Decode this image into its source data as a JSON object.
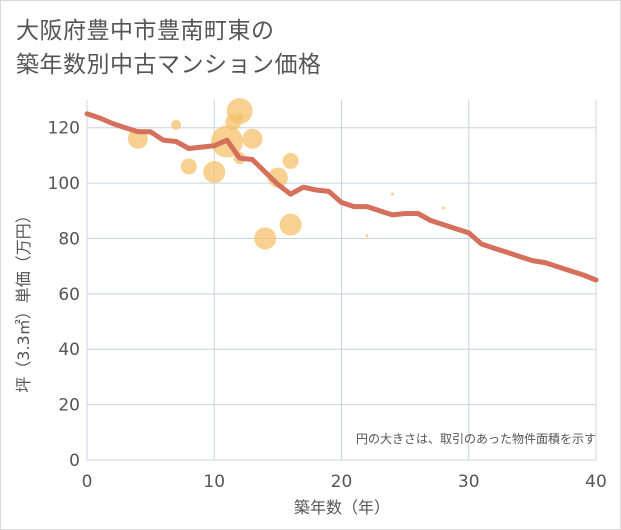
{
  "chart_data": {
    "type": "scatter",
    "title_line1": "大阪府豊中市豊南町東の",
    "title_line2": "築年数別中古マンション価格",
    "xlabel": "築年数（年）",
    "ylabel": "坪（3.3㎡）単価（万円）",
    "xlim": [
      0,
      40
    ],
    "ylim": [
      0,
      130
    ],
    "x_ticks": [
      0,
      10,
      20,
      30,
      40
    ],
    "y_ticks": [
      0,
      20,
      40,
      60,
      80,
      100,
      120
    ],
    "grid": true,
    "note": "円の大きさは、取引のあった物件面積を示す",
    "colors": {
      "bubble": "#f5c26b",
      "line": "#d4705c",
      "grid": "#c8d4e0",
      "text": "#555555"
    },
    "bubbles": [
      {
        "x": 4,
        "y": 116,
        "size": 10
      },
      {
        "x": 7,
        "y": 121,
        "size": 5
      },
      {
        "x": 8,
        "y": 106,
        "size": 8
      },
      {
        "x": 10,
        "y": 104,
        "size": 11
      },
      {
        "x": 11,
        "y": 115,
        "size": 16
      },
      {
        "x": 11.5,
        "y": 122,
        "size": 8
      },
      {
        "x": 12,
        "y": 126,
        "size": 13
      },
      {
        "x": 12,
        "y": 124,
        "size": 4
      },
      {
        "x": 12,
        "y": 109,
        "size": 6
      },
      {
        "x": 13,
        "y": 116,
        "size": 10
      },
      {
        "x": 15,
        "y": 102,
        "size": 10
      },
      {
        "x": 16,
        "y": 108,
        "size": 8
      },
      {
        "x": 14,
        "y": 80,
        "size": 11
      },
      {
        "x": 16,
        "y": 85,
        "size": 11
      },
      {
        "x": 22,
        "y": 81,
        "size": 1.5
      },
      {
        "x": 24,
        "y": 96,
        "size": 1.5
      },
      {
        "x": 28,
        "y": 91,
        "size": 1.5
      }
    ],
    "line": {
      "x": [
        0,
        1,
        2,
        3,
        4,
        5,
        6,
        7,
        8,
        9,
        10,
        11,
        12,
        13,
        14,
        15,
        16,
        17,
        18,
        19,
        20,
        21,
        22,
        23,
        24,
        25,
        26,
        27,
        28,
        29,
        30,
        31,
        32,
        33,
        34,
        35,
        36,
        37,
        38,
        39,
        40
      ],
      "y": [
        125,
        123.5,
        121.5,
        120,
        118.5,
        118.5,
        115.5,
        115,
        112.5,
        113,
        113.5,
        115.5,
        109,
        108.5,
        104,
        99.5,
        96,
        98.5,
        97.5,
        97,
        93,
        91.5,
        91.5,
        90,
        88.5,
        89,
        89,
        86.5,
        85,
        83.5,
        82,
        78,
        76.5,
        75,
        73.5,
        72,
        71.3,
        69.8,
        68.3,
        66.8,
        65
      ]
    }
  }
}
